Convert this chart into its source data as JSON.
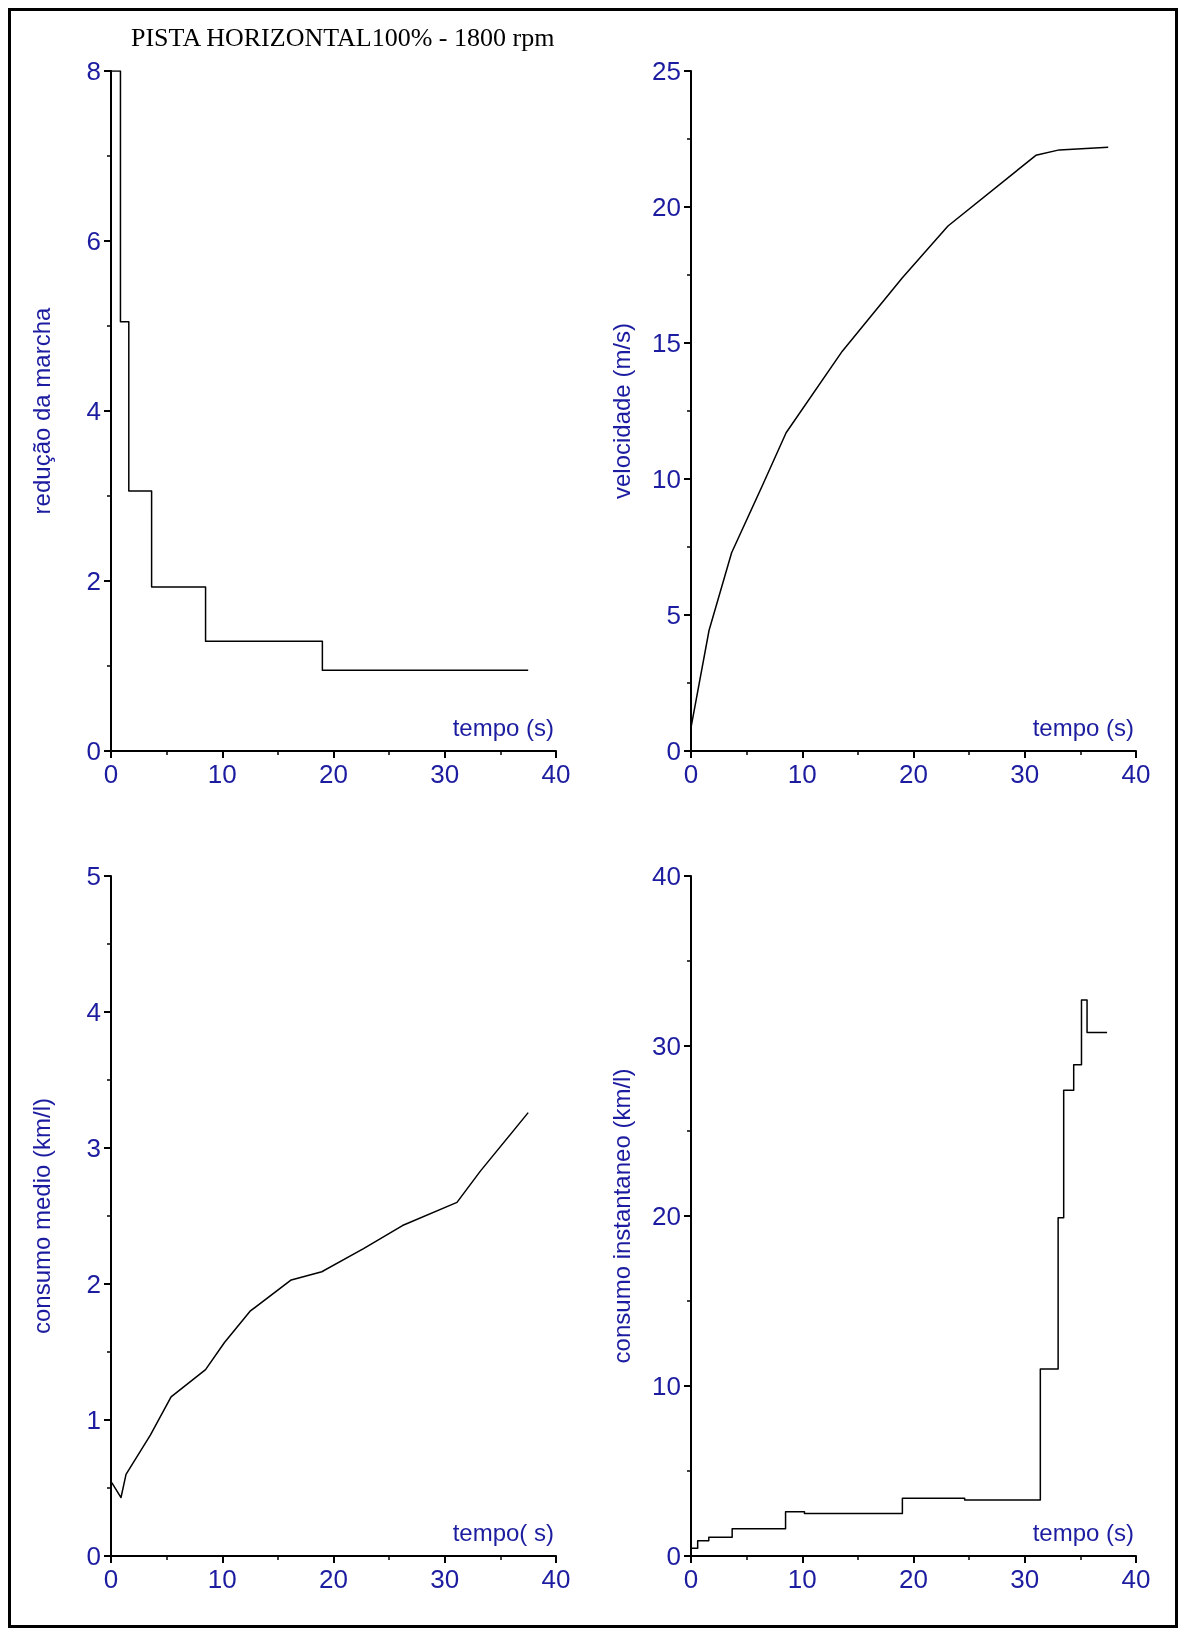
{
  "chart_data": [
    {
      "type": "step",
      "title": "PISTA HORIZONTAL100% - 1800 rpm",
      "xlabel": "tempo (s)",
      "ylabel": "redução da marcha",
      "color": "#000000",
      "x": [
        0,
        0.85,
        1.6,
        3.65,
        8.5,
        19,
        37.5
      ],
      "values": [
        8,
        5.05,
        3.06,
        1.93,
        1.29,
        0.95,
        0.95
      ],
      "xlim": [
        0,
        40
      ],
      "xticks": [
        0,
        10,
        20,
        30,
        40
      ],
      "ylim": [
        0,
        8
      ],
      "yticks": [
        0,
        2,
        4,
        6,
        8
      ]
    },
    {
      "type": "line",
      "xlabel": "tempo (s)",
      "ylabel": "velocidade (m/s)",
      "color": "#000000",
      "x": [
        0,
        1.62,
        3.65,
        6.53,
        8.55,
        13.6,
        19,
        23.1,
        31,
        33.1,
        37.5
      ],
      "values": [
        0.86,
        4.43,
        7.29,
        9.86,
        11.7,
        14.7,
        17.4,
        19.3,
        21.9,
        22.1,
        22.2
      ],
      "xlim": [
        0,
        40
      ],
      "xticks": [
        0,
        10,
        20,
        30,
        40
      ],
      "ylim": [
        0,
        25
      ],
      "yticks": [
        0,
        5,
        10,
        15,
        20,
        25
      ]
    },
    {
      "type": "line",
      "xlabel": "tempo( s)",
      "ylabel": "consumo medio (km/l)",
      "color": "#000000",
      "x": [
        0.07,
        0.9,
        1.35,
        3.55,
        5.4,
        8.5,
        10.2,
        12.5,
        16.2,
        18.95,
        22.7,
        26.2,
        31.1,
        33.2,
        37.5
      ],
      "values": [
        0.54,
        0.43,
        0.6,
        0.89,
        1.17,
        1.37,
        1.57,
        1.8,
        2.03,
        2.09,
        2.26,
        2.43,
        2.6,
        2.83,
        3.26
      ],
      "xlim": [
        0,
        40
      ],
      "xticks": [
        0,
        10,
        20,
        30,
        40
      ],
      "ylim": [
        0,
        5
      ],
      "yticks": [
        0,
        1,
        2,
        3,
        4,
        5
      ]
    },
    {
      "type": "step",
      "xlabel": "tempo (s)",
      "ylabel": "consumo instantaneo (km/l)",
      "color": "#000000",
      "x": [
        0,
        0.6,
        1.6,
        3.7,
        8.5,
        10.2,
        19,
        24.6,
        31.4,
        33,
        33.5,
        34.4,
        35.1,
        35.6,
        37.4
      ],
      "values": [
        0.45,
        0.9,
        1.1,
        1.6,
        2.6,
        2.5,
        3.4,
        3.3,
        11,
        19.9,
        27.4,
        28.9,
        32.7,
        30.8,
        30.8
      ],
      "xlim": [
        0,
        40
      ],
      "xticks": [
        0,
        10,
        20,
        30,
        40
      ],
      "ylim": [
        0,
        40
      ],
      "yticks": [
        0,
        10,
        20,
        30,
        40
      ]
    }
  ]
}
